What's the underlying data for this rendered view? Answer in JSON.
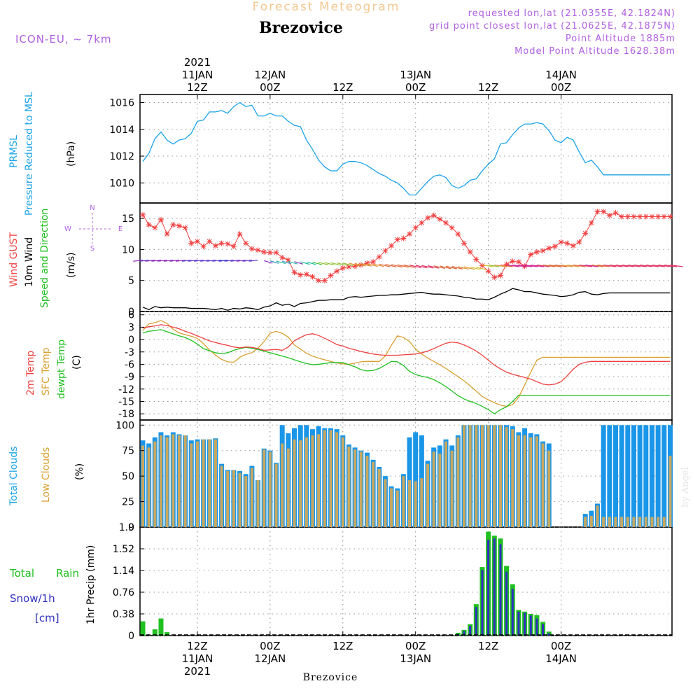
{
  "header": {
    "title": "Forecast Meteogram",
    "location": "Brezovice",
    "model": "ICON-EU, ~ 7km",
    "requested": "requested lon,lat (21.0355E, 42.1824N)",
    "gridpoint": "grid point closest lon,lat (21.0625E, 42.1875N)",
    "altitude": "Point Altitude 1885m",
    "model_altitude": "Model Point Altitude 1628.38m",
    "footer_location": "Brezovice",
    "credit": "by Angel"
  },
  "time_axis": {
    "top_labels": [
      {
        "lines": [
          "2021",
          "11JAN",
          "12Z"
        ],
        "hour": 12
      },
      {
        "lines": [
          "12JAN",
          "00Z"
        ],
        "hour": 24
      },
      {
        "lines": [
          "12Z"
        ],
        "hour": 36
      },
      {
        "lines": [
          "13JAN",
          "00Z"
        ],
        "hour": 48
      },
      {
        "lines": [
          "12Z"
        ],
        "hour": 60
      },
      {
        "lines": [
          "14JAN",
          "00Z"
        ],
        "hour": 72
      }
    ],
    "bottom_labels": [
      {
        "lines": [
          "12Z",
          "11JAN",
          "2021"
        ],
        "hour": 12
      },
      {
        "lines": [
          "00Z",
          "12JAN"
        ],
        "hour": 24
      },
      {
        "lines": [
          "12Z"
        ],
        "hour": 36
      },
      {
        "lines": [
          "00Z",
          "13JAN"
        ],
        "hour": 48
      },
      {
        "lines": [
          "12Z"
        ],
        "hour": 60
      },
      {
        "lines": [
          "00Z",
          "14JAN"
        ],
        "hour": 72
      }
    ]
  },
  "panels": {
    "pressure": {
      "label1": "PRMSL",
      "label2": "Pressure Reduced to MSL",
      "unit": "(hPa)"
    },
    "wind": {
      "label1": "Wind GUST",
      "label2": "10m Wind",
      "label3": "Speed and Direction",
      "unit": "(m/s)",
      "compass_n": "N",
      "compass_s": "S",
      "compass_w": "W",
      "compass_e": "E"
    },
    "temp": {
      "label1": "2m Temp",
      "label2": "SFC Temp",
      "label3": "dewpt Temp",
      "unit": "(C)"
    },
    "clouds": {
      "label1": "Total Clouds",
      "label2": "Low Clouds",
      "unit": "(%)"
    },
    "precip": {
      "label1": "Total",
      "label2": "Rain",
      "label3": "Snow/1h",
      "label4": "[cm]",
      "unit": "1hr Precip (mm)"
    }
  },
  "colors": {
    "pressure": "#1aa3e8",
    "gust": "#f04040",
    "wind_speed": "#000000",
    "temp2m": "#f04040",
    "sfc": "#d9a030",
    "dewpt": "#20c020",
    "total_clouds": "#1a96e8",
    "low_clouds": "#c8a860",
    "rain": "#20c020",
    "snow": "#3030c0",
    "label_purple": "#b060e0"
  },
  "chart_data": [
    {
      "type": "line",
      "name": "pressure",
      "x_unit": "hours from 11JAN 03Z",
      "ylim": [
        1008.5,
        1016.6
      ],
      "yticks": [
        "1010",
        "1012",
        "1014",
        "1016"
      ],
      "ytick_values": [
        1010,
        1012,
        1014,
        1016
      ],
      "x": [
        0,
        1,
        2,
        3,
        4,
        5,
        6,
        7,
        8,
        9,
        10,
        11,
        12,
        13,
        14,
        15,
        16,
        17,
        18,
        19,
        20,
        21,
        22,
        23,
        24,
        25,
        26,
        27,
        28,
        29,
        30,
        31,
        32,
        33,
        34,
        35,
        36,
        37,
        38,
        39,
        40,
        41,
        42,
        43,
        44,
        45,
        46,
        47,
        48,
        49,
        50,
        51,
        52,
        53,
        54,
        55,
        56,
        57,
        58,
        59,
        60,
        61,
        62,
        63,
        64,
        65,
        66,
        67,
        68,
        69,
        70,
        71,
        72,
        73,
        74,
        75,
        76,
        77,
        78,
        79,
        80,
        81,
        82,
        83,
        84,
        85,
        86,
        87
      ],
      "values": [
        1011.6,
        1012.2,
        1013.3,
        1013.8,
        1013.2,
        1012.9,
        1013.2,
        1013.3,
        1013.7,
        1014.6,
        1014.7,
        1015.3,
        1015.3,
        1015.4,
        1015.2,
        1015.7,
        1016.0,
        1015.7,
        1015.8,
        1015.0,
        1015.0,
        1015.2,
        1015.0,
        1015.0,
        1014.6,
        1014.3,
        1014.2,
        1013.2,
        1012.5,
        1011.7,
        1011.2,
        1010.9,
        1010.9,
        1011.4,
        1011.6,
        1011.6,
        1011.5,
        1011.3,
        1011.0,
        1010.7,
        1010.5,
        1010.2,
        1010.0,
        1009.6,
        1009.1,
        1009.1,
        1009.6,
        1010.1,
        1010.5,
        1010.6,
        1010.4,
        1009.8,
        1009.6,
        1009.8,
        1010.2,
        1010.3,
        1010.9,
        1011.4,
        1011.8,
        1012.9,
        1013.0,
        1013.6,
        1014.1,
        1014.4,
        1014.4,
        1014.5,
        1014.4,
        1013.9,
        1013.2,
        1013.0,
        1013.4,
        1013.2,
        1012.3,
        1011.5,
        1011.7,
        1011.2,
        1010.6,
        1010.6,
        1010.6,
        1010.6,
        1010.6,
        1010.6,
        1010.6,
        1010.6,
        1010.6,
        1010.6,
        1010.6,
        1010.6
      ]
    },
    {
      "type": "line",
      "name": "wind",
      "ylim": [
        0,
        17.5
      ],
      "yticks": [
        "0",
        "5",
        "10",
        "15"
      ],
      "ytick_values": [
        0,
        5,
        10,
        15
      ],
      "gust": [
        15.6,
        14.0,
        13.5,
        14.8,
        12.5,
        14.0,
        13.8,
        13.5,
        11.0,
        11.3,
        10.5,
        11.3,
        10.6,
        11.0,
        10.9,
        10.5,
        12.5,
        11.0,
        10.1,
        9.9,
        9.6,
        9.5,
        9.5,
        8.7,
        8.3,
        6.3,
        5.9,
        6.0,
        5.6,
        5.0,
        5.0,
        5.8,
        6.5,
        7.0,
        7.2,
        7.3,
        7.5,
        7.8,
        8.0,
        8.8,
        9.8,
        10.6,
        11.6,
        11.8,
        12.5,
        13.5,
        14.3,
        15.1,
        15.5,
        14.9,
        14.3,
        13.5,
        12.5,
        11.0,
        9.6,
        8.4,
        7.4,
        6.5,
        5.5,
        5.8,
        7.6,
        8.1,
        8.0,
        7.3,
        9.2,
        9.6,
        9.8,
        10.2,
        10.5,
        11.2,
        11.0,
        10.6,
        11.2,
        12.6,
        14.3,
        16.1,
        16.1,
        15.5,
        15.9,
        15.3,
        15.3,
        15.3,
        15.3,
        15.3,
        15.3,
        15.3,
        15.3,
        15.3
      ],
      "speed": [
        0.7,
        0.3,
        0.8,
        0.6,
        0.7,
        0.6,
        0.6,
        0.6,
        0.5,
        0.5,
        0.5,
        0.4,
        0.3,
        0.5,
        0.2,
        0.5,
        0.4,
        0.6,
        0.5,
        0.3,
        0.7,
        0.9,
        1.4,
        1.0,
        1.2,
        0.8,
        1.3,
        1.4,
        1.6,
        1.8,
        1.8,
        1.9,
        1.9,
        1.9,
        2.3,
        2.4,
        2.3,
        2.4,
        2.5,
        2.6,
        2.6,
        2.7,
        2.7,
        2.8,
        2.9,
        3.0,
        3.1,
        2.9,
        2.8,
        2.8,
        2.7,
        2.6,
        2.5,
        2.3,
        2.2,
        2.0,
        2.0,
        1.9,
        2.3,
        2.8,
        3.2,
        3.7,
        3.5,
        3.2,
        3.2,
        3.0,
        2.8,
        2.7,
        2.6,
        2.4,
        2.5,
        2.7,
        3.1,
        3.2,
        2.8,
        2.7,
        2.9,
        3.0,
        3.0,
        3.0,
        3.0,
        3.0,
        3.0,
        3.0,
        3.0,
        3.0,
        3.0,
        3.0
      ]
    },
    {
      "type": "line",
      "name": "temperature",
      "ylim": [
        -19.5,
        6.8
      ],
      "yticks": [
        "6",
        "3",
        "0",
        "-3",
        "-6",
        "-9",
        "-12",
        "-15",
        "-18"
      ],
      "ytick_values": [
        6,
        3,
        0,
        -3,
        -6,
        -9,
        -12,
        -15,
        -18
      ],
      "temp2m": [
        2.8,
        3.1,
        3.3,
        3.6,
        3.4,
        3.0,
        2.6,
        2.0,
        1.5,
        0.9,
        0.3,
        -0.3,
        -0.7,
        -1.1,
        -1.4,
        -1.8,
        -2.0,
        -1.8,
        -1.9,
        -2.2,
        -2.6,
        -2.5,
        -2.4,
        -2.6,
        -1.8,
        -0.3,
        0.5,
        1.2,
        1.4,
        1.0,
        0.3,
        -0.4,
        -1.2,
        -1.6,
        -2.1,
        -2.5,
        -2.9,
        -3.2,
        -3.5,
        -3.7,
        -3.8,
        -3.8,
        -3.8,
        -3.7,
        -3.6,
        -3.5,
        -3.2,
        -2.8,
        -2.2,
        -1.5,
        -0.9,
        -0.6,
        -0.8,
        -1.3,
        -2.0,
        -2.8,
        -3.8,
        -5.0,
        -6.2,
        -7.1,
        -7.9,
        -8.4,
        -8.8,
        -9.2,
        -9.6,
        -10.2,
        -10.8,
        -11.0,
        -10.8,
        -10.2,
        -8.8,
        -7.2,
        -6.0,
        -5.5,
        -5.3,
        -5.3,
        -5.3,
        -5.3,
        -5.3,
        -5.3,
        -5.3,
        -5.3,
        -5.3,
        -5.3,
        -5.3,
        -5.3,
        -5.3,
        -5.3
      ],
      "sfc": [
        2.2,
        3.8,
        4.1,
        4.6,
        3.9,
        2.5,
        1.6,
        1.2,
        0.8,
        0.3,
        -1.0,
        -2.5,
        -3.8,
        -4.8,
        -5.4,
        -5.5,
        -4.3,
        -3.6,
        -3.2,
        -2.1,
        -0.5,
        1.5,
        2.0,
        1.5,
        0.6,
        -1.3,
        -2.3,
        -3.3,
        -4.0,
        -4.5,
        -4.9,
        -5.3,
        -5.7,
        -5.9,
        -6.0,
        -5.7,
        -5.4,
        -5.3,
        -5.3,
        -5.3,
        -4.0,
        -1.4,
        0.9,
        0.5,
        -0.5,
        -2.3,
        -3.5,
        -4.5,
        -5.3,
        -6.1,
        -7.0,
        -8.0,
        -9.0,
        -10.0,
        -11.2,
        -12.5,
        -13.8,
        -14.6,
        -15.3,
        -15.9,
        -16.2,
        -15.8,
        -14.0,
        -11.0,
        -7.9,
        -5.0,
        -4.3,
        -4.3,
        -4.3,
        -4.3,
        -4.3,
        -4.3,
        -4.3,
        -4.3,
        -4.3,
        -4.3,
        -4.3,
        -4.3,
        -4.3,
        -4.3,
        -4.3,
        -4.3,
        -4.3,
        -4.3,
        -4.3,
        -4.3,
        -4.3,
        -4.3
      ],
      "dewpt": [
        1.6,
        2.0,
        2.2,
        2.4,
        1.9,
        1.4,
        0.9,
        0.5,
        -0.2,
        -1.1,
        -2.2,
        -2.7,
        -3.2,
        -3.4,
        -3.2,
        -2.6,
        -2.2,
        -1.9,
        -2.1,
        -2.4,
        -2.8,
        -3.2,
        -3.6,
        -4.0,
        -4.4,
        -4.9,
        -5.4,
        -5.8,
        -6.1,
        -6.0,
        -5.8,
        -5.6,
        -5.6,
        -5.6,
        -6.1,
        -6.6,
        -7.3,
        -7.6,
        -7.5,
        -7.0,
        -6.2,
        -5.3,
        -5.4,
        -6.3,
        -7.7,
        -8.5,
        -8.9,
        -9.2,
        -9.7,
        -10.5,
        -11.4,
        -12.5,
        -13.6,
        -14.4,
        -15.0,
        -15.5,
        -16.2,
        -17.0,
        -18.0,
        -17.0,
        -16.3,
        -15.0,
        -13.5,
        -13.5,
        -13.5,
        -13.5,
        -13.5,
        -13.5,
        -13.5,
        -13.5,
        -13.5,
        -13.5,
        -13.5,
        -13.5,
        -13.5,
        -13.5,
        -13.5,
        -13.5,
        -13.5,
        -13.5,
        -13.5,
        -13.5,
        -13.5,
        -13.5,
        -13.5,
        -13.5,
        -13.5,
        -13.5
      ],
      "x_temp2m": [
        0,
        1,
        2,
        3,
        4,
        5,
        6,
        7,
        8,
        9,
        10,
        11,
        12,
        13,
        14,
        15,
        16,
        17,
        18,
        19,
        20,
        21,
        22,
        23,
        24,
        25,
        26,
        27,
        28,
        29,
        30,
        31,
        32,
        33,
        34,
        35,
        36,
        37,
        38,
        39,
        40,
        41,
        42,
        43,
        44,
        45,
        46,
        47,
        48,
        49,
        50,
        51,
        52,
        53,
        54,
        55,
        56,
        57,
        58,
        59,
        60,
        61,
        62,
        63,
        64,
        65,
        66,
        67,
        68,
        69,
        70,
        71,
        72,
        73,
        74,
        75,
        76,
        77,
        78,
        79,
        80,
        81,
        82,
        83,
        84,
        85,
        86,
        87
      ]
    },
    {
      "type": "bar",
      "name": "clouds",
      "ylim": [
        0,
        105
      ],
      "yticks": [
        "0",
        "25",
        "50",
        "75",
        "100"
      ],
      "ytick_values": [
        0,
        25,
        50,
        75,
        100
      ],
      "total": [
        85,
        82,
        88,
        93,
        90,
        93,
        91,
        90,
        85,
        86,
        86,
        86,
        87,
        62,
        56,
        56,
        55,
        52,
        60,
        46,
        77,
        75,
        63,
        100,
        92,
        97,
        100,
        100,
        96,
        99,
        97,
        97,
        96,
        90,
        81,
        78,
        75,
        73,
        66,
        59,
        50,
        40,
        38,
        52,
        88,
        93,
        90,
        65,
        78,
        80,
        86,
        80,
        90,
        100,
        100,
        100,
        100,
        100,
        100,
        100,
        100,
        99,
        93,
        97,
        92,
        91,
        84,
        82,
        0,
        0,
        0,
        0,
        0,
        13,
        16,
        23,
        100,
        100,
        100,
        100,
        100,
        100,
        100,
        100,
        100,
        100,
        100,
        100
      ],
      "low": [
        80,
        78,
        84,
        90,
        88,
        91,
        90,
        90,
        82,
        84,
        86,
        86,
        86,
        60,
        55,
        56,
        53,
        50,
        58,
        46,
        76,
        74,
        62,
        82,
        77,
        86,
        85,
        88,
        90,
        91,
        95,
        95,
        93,
        88,
        79,
        76,
        74,
        70,
        64,
        57,
        47,
        38,
        36,
        50,
        46,
        45,
        48,
        62,
        74,
        72,
        84,
        75,
        88,
        100,
        100,
        100,
        100,
        100,
        100,
        100,
        98,
        96,
        90,
        90,
        88,
        89,
        82,
        75,
        0,
        0,
        0,
        0,
        0,
        10,
        11,
        21,
        10,
        10,
        10,
        10,
        10,
        10,
        10,
        10,
        10,
        10,
        10,
        70
      ]
    },
    {
      "type": "bar",
      "name": "precipitation",
      "ylim": [
        0,
        1.9
      ],
      "yticks": [
        "0",
        "0.38",
        "0.76",
        "1.14",
        "1.52",
        "1.9"
      ],
      "ytick_values": [
        0,
        0.38,
        0.76,
        1.14,
        1.52,
        1.9
      ],
      "rain": [
        0.25,
        0,
        0.11,
        0.3,
        0.06,
        0,
        0,
        0,
        0,
        0,
        0,
        0,
        0,
        0,
        0,
        0,
        0,
        0,
        0,
        0,
        0,
        0,
        0,
        0,
        0,
        0,
        0,
        0,
        0,
        0,
        0,
        0,
        0,
        0,
        0,
        0,
        0,
        0,
        0,
        0,
        0,
        0,
        0,
        0,
        0,
        0,
        0,
        0,
        0,
        0,
        0,
        0,
        0.05,
        0.1,
        0.2,
        0.55,
        1.2,
        1.82,
        1.75,
        1.7,
        1.22,
        0.9,
        0.45,
        0.42,
        0.38,
        0.36,
        0.24,
        0.07,
        0,
        0,
        0,
        0,
        0,
        0,
        0,
        0,
        0,
        0,
        0,
        0,
        0,
        0,
        0,
        0,
        0,
        0,
        0,
        0
      ],
      "snow": [
        0,
        0,
        0,
        0,
        0,
        0,
        0,
        0,
        0,
        0,
        0,
        0,
        0,
        0,
        0,
        0,
        0,
        0,
        0,
        0,
        0,
        0,
        0,
        0,
        0,
        0,
        0,
        0,
        0,
        0,
        0,
        0,
        0,
        0,
        0,
        0,
        0,
        0,
        0,
        0,
        0,
        0,
        0,
        0,
        0,
        0,
        0,
        0,
        0,
        0,
        0,
        0,
        0.03,
        0.08,
        0.17,
        0.5,
        1.15,
        1.68,
        1.7,
        1.6,
        1.12,
        0.82,
        0.42,
        0.4,
        0.35,
        0.3,
        0.2,
        0.04,
        0,
        0,
        0,
        0,
        0,
        0,
        0,
        0,
        0,
        0,
        0,
        0,
        0,
        0,
        0,
        0,
        0,
        0,
        0,
        0
      ]
    }
  ]
}
